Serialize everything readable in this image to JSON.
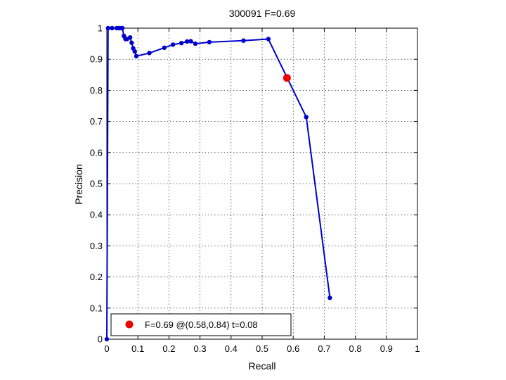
{
  "chart_data": {
    "type": "line",
    "title": "300091 F=0.69",
    "xlabel": "Recall",
    "ylabel": "Precision",
    "xlim": [
      0,
      1
    ],
    "ylim": [
      0,
      1
    ],
    "xticks": [
      "0",
      "0.1",
      "0.2",
      "0.3",
      "0.4",
      "0.5",
      "0.6",
      "0.7",
      "0.8",
      "0.9",
      "1"
    ],
    "yticks": [
      "0",
      "0.1",
      "0.2",
      "0.3",
      "0.4",
      "0.5",
      "0.6",
      "0.7",
      "0.8",
      "0.9",
      "1"
    ],
    "grid": true,
    "legend_position": "bottom-left",
    "series": [
      {
        "color": "#0000cc",
        "x": [
          0.0,
          0.004,
          0.017,
          0.032,
          0.04,
          0.047,
          0.05,
          0.055,
          0.06,
          0.065,
          0.075,
          0.08,
          0.085,
          0.09,
          0.095,
          0.137,
          0.185,
          0.213,
          0.24,
          0.258,
          0.27,
          0.285,
          0.33,
          0.44,
          0.52,
          0.642,
          0.718
        ],
        "y": [
          0.0,
          1.0,
          1.0,
          1.0,
          1.0,
          1.0,
          1.0,
          0.975,
          0.965,
          0.965,
          0.97,
          0.953,
          0.935,
          0.925,
          0.91,
          0.92,
          0.937,
          0.947,
          0.952,
          0.957,
          0.958,
          0.95,
          0.955,
          0.96,
          0.965,
          0.714,
          0.133
        ]
      }
    ],
    "highlight_point": {
      "x": 0.58,
      "y": 0.84,
      "color": "#ee0000",
      "label": "F=0.69 @(0.58,0.84) t=0.08"
    }
  }
}
